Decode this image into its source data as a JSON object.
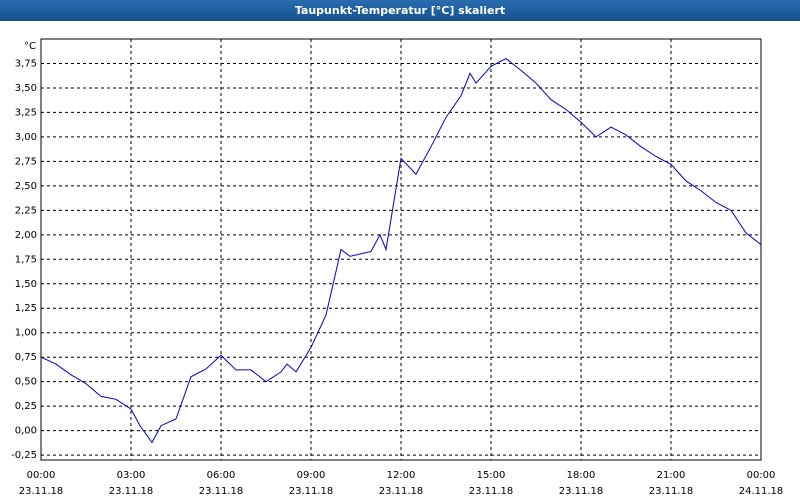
{
  "chart_data": {
    "type": "line",
    "title": "Taupunkt-Temperatur [°C] skaliert",
    "y_unit": "°C",
    "x": [
      0,
      0.5,
      1,
      1.5,
      2,
      2.5,
      3,
      3.3,
      3.7,
      4,
      4.5,
      5,
      5.5,
      6,
      6.5,
      7,
      7.5,
      8,
      8.2,
      8.5,
      9,
      9.5,
      10,
      10.3,
      11,
      11.3,
      11.5,
      12,
      12.5,
      13,
      13.5,
      14,
      14.3,
      14.5,
      15,
      15.5,
      16,
      16.5,
      17,
      17.5,
      18,
      18.5,
      19,
      19.5,
      20,
      20.5,
      21,
      21.5,
      22,
      22.5,
      23,
      23.5,
      24
    ],
    "series": [
      {
        "name": "Taupunkt",
        "color": "#0000cc",
        "values": [
          0.75,
          0.68,
          0.57,
          0.48,
          0.35,
          0.32,
          0.22,
          0.05,
          -0.12,
          0.05,
          0.12,
          0.55,
          0.63,
          0.77,
          0.62,
          0.62,
          0.5,
          0.6,
          0.68,
          0.6,
          0.85,
          1.18,
          1.85,
          1.78,
          1.83,
          2.0,
          1.85,
          2.78,
          2.62,
          2.9,
          3.2,
          3.42,
          3.65,
          3.55,
          3.72,
          3.8,
          3.68,
          3.55,
          3.38,
          3.28,
          3.15,
          3.0,
          3.1,
          3.02,
          2.9,
          2.8,
          2.72,
          2.55,
          2.45,
          2.33,
          2.25,
          2.02,
          1.9
        ]
      }
    ],
    "xlim": [
      0,
      24
    ],
    "xticks": [
      {
        "value": 0,
        "label": "00:00"
      },
      {
        "value": 3,
        "label": "03:00"
      },
      {
        "value": 6,
        "label": "06:00"
      },
      {
        "value": 9,
        "label": "09:00"
      },
      {
        "value": 12,
        "label": "12:00"
      },
      {
        "value": 15,
        "label": "15:00"
      },
      {
        "value": 18,
        "label": "18:00"
      },
      {
        "value": 21,
        "label": "21:00"
      },
      {
        "value": 24,
        "label": "00:00"
      }
    ],
    "xtick_dates": [
      "23.11.18",
      "23.11.18",
      "23.11.18",
      "23.11.18",
      "23.11.18",
      "23.11.18",
      "23.11.18",
      "23.11.18",
      "24.11.18"
    ],
    "ylim": [
      -0.3,
      4.0
    ],
    "yticks": [
      {
        "value": -0.25,
        "label": "-0,25"
      },
      {
        "value": 0,
        "label": "0,00"
      },
      {
        "value": 0.25,
        "label": "0,25"
      },
      {
        "value": 0.5,
        "label": "0,50"
      },
      {
        "value": 0.75,
        "label": "0,75"
      },
      {
        "value": 1,
        "label": "1,00"
      },
      {
        "value": 1.25,
        "label": "1,25"
      },
      {
        "value": 1.5,
        "label": "1,50"
      },
      {
        "value": 1.75,
        "label": "1,75"
      },
      {
        "value": 2,
        "label": "2,00"
      },
      {
        "value": 2.25,
        "label": "2,25"
      },
      {
        "value": 2.5,
        "label": "2,50"
      },
      {
        "value": 2.75,
        "label": "2,75"
      },
      {
        "value": 3,
        "label": "3,00"
      },
      {
        "value": 3.25,
        "label": "3,25"
      },
      {
        "value": 3.5,
        "label": "3,50"
      },
      {
        "value": 3.75,
        "label": "3,75"
      }
    ],
    "grid": true
  }
}
